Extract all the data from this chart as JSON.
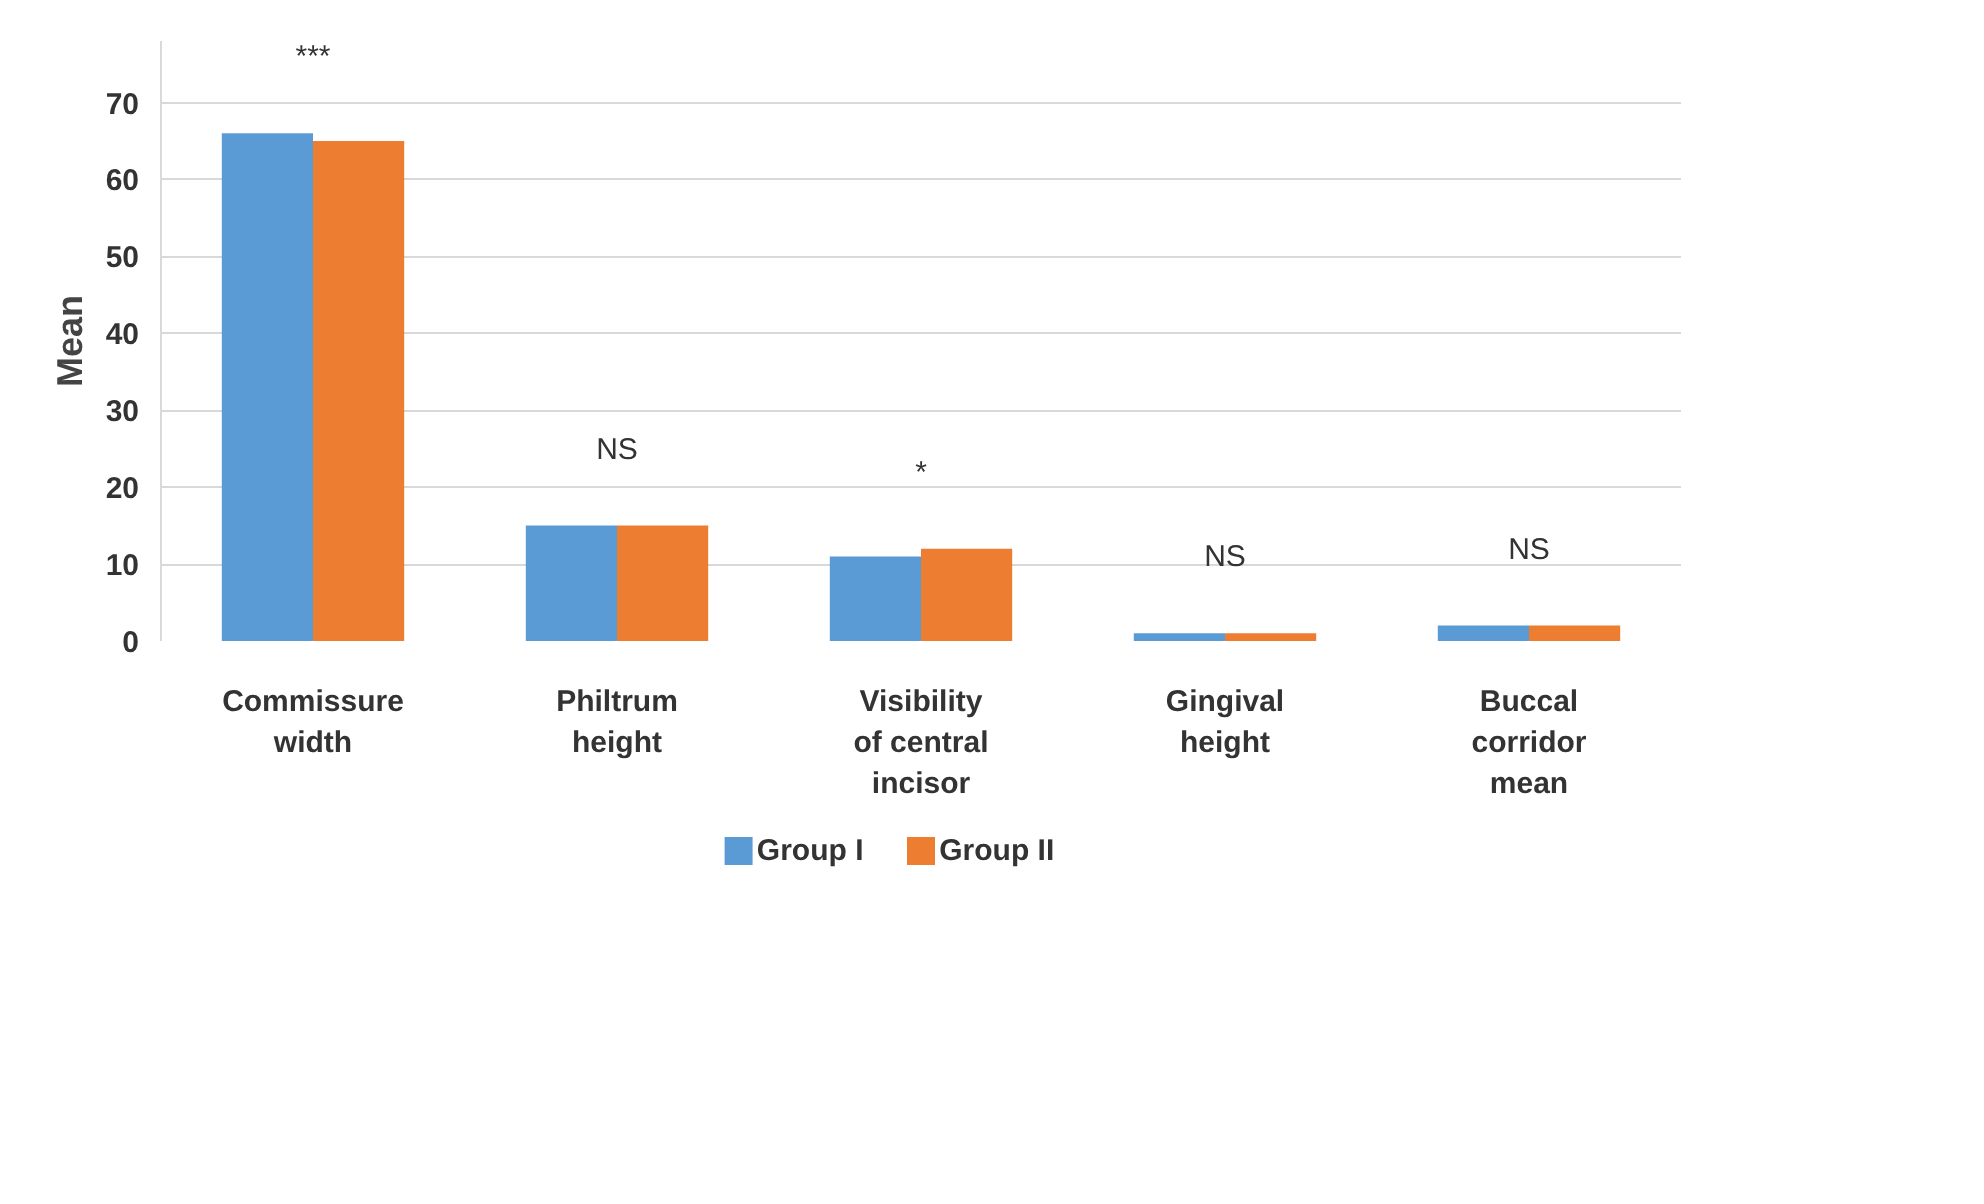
{
  "chart_data": {
    "type": "bar",
    "ylabel": "Mean",
    "categories": [
      "Commissure width",
      "Philtrum height",
      "Visibility of central incisor",
      "Gingival height",
      "Buccal corridor mean"
    ],
    "series": [
      {
        "name": "Group I",
        "color": "#5b9bd5",
        "values": [
          66,
          15,
          11,
          1,
          2
        ]
      },
      {
        "name": "Group II",
        "color": "#ed7d31",
        "values": [
          65,
          15,
          12,
          1,
          2
        ]
      }
    ],
    "ylim": [
      0,
      78
    ],
    "yticks": [
      0,
      10,
      20,
      30,
      40,
      50,
      60,
      70
    ],
    "grid": "y",
    "legend": "bottom",
    "annotations": [
      "***",
      "NS",
      "*",
      "NS",
      "NS"
    ]
  }
}
